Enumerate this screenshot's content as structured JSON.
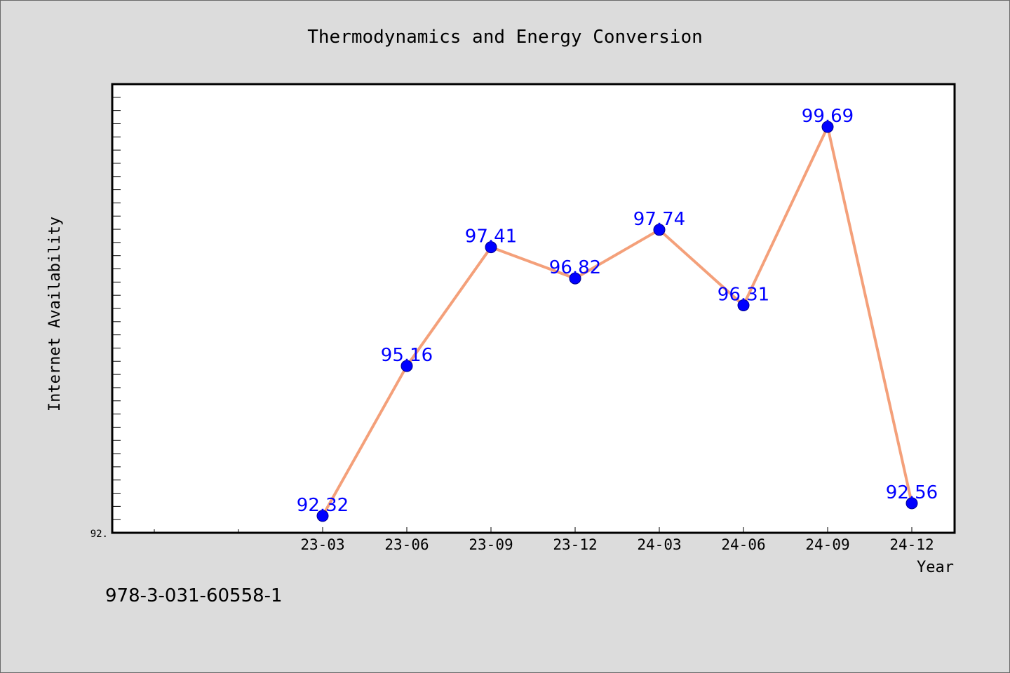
{
  "chart_data": {
    "type": "line",
    "title": "Thermodynamics and Energy Conversion",
    "xlabel": "Year",
    "ylabel": "Internet Availability",
    "categories": [
      "23-03",
      "23-06",
      "23-09",
      "23-12",
      "24-03",
      "24-06",
      "24-09",
      "24-12"
    ],
    "series": [
      {
        "values": [
          92.32,
          95.16,
          97.41,
          96.82,
          97.74,
          96.31,
          99.69,
          92.56
        ],
        "data_labels": [
          "92.32",
          "95.16",
          "97.41",
          "96.82",
          "97.74",
          "96.31",
          "99.69",
          "92.56"
        ],
        "line_color": "#f4a07a",
        "marker_color": "#0000ff"
      }
    ],
    "ylim": [
      92.0,
      100.5
    ],
    "ytick_label": "92.",
    "grid": false,
    "legend": "none",
    "background": "#dcdcdc",
    "plot_background": "#ffffff"
  },
  "footer": {
    "isbn": "978-3-031-60558-1"
  }
}
